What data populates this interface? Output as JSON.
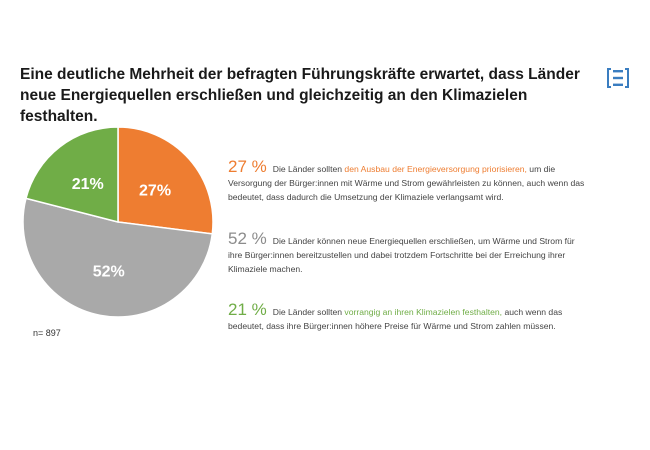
{
  "title": "Eine deutliche Mehrheit der befragten Führungskräfte erwartet, dass Länder neue Energiequellen erschließen und gleichzeitig an den Klimazielen festhalten.",
  "colors": {
    "orange": "#ee7d31",
    "gray": "#a9a9a9",
    "green": "#70ad47",
    "logo": "#3a7dc0"
  },
  "chart_data": {
    "type": "pie",
    "slices": [
      {
        "label": "27%",
        "value": 27,
        "color": "#ee7d31"
      },
      {
        "label": "52%",
        "value": 52,
        "color": "#a9a9a9"
      },
      {
        "label": "21%",
        "value": 21,
        "color": "#70ad47"
      }
    ],
    "note": "n= 897"
  },
  "legend": [
    {
      "pct": "27 %",
      "pre": "Die Länder sollten ",
      "highlight": "den Ausbau der Energieversorgung priorisieren,",
      "post": " um die Versorgung der Bürger:innen mit Wärme und Strom gewährleisten zu können, auch wenn das bedeutet, dass dadurch die Umsetzung der Klimaziele verlangsamt wird.",
      "color": "#ee7d31"
    },
    {
      "pct": "52 %",
      "pre": "Die Länder  können neue Energiequellen erschließen, um Wärme und Strom für ihre Bürger:innen bereitzustellen und dabei trotzdem Fortschritte bei der Erreichung ihrer Klimaziele machen.",
      "highlight": "",
      "post": "",
      "color": "#8c8c8c"
    },
    {
      "pct": "21 %",
      "pre": "Die Länder  sollten ",
      "highlight": "vorrangig an ihren Klimazielen festhalten,",
      "post": " auch wenn das bedeutet, dass ihre Bürger:innen höhere Preise für Wärme und Strom zahlen müssen.",
      "color": "#70ad47"
    }
  ]
}
